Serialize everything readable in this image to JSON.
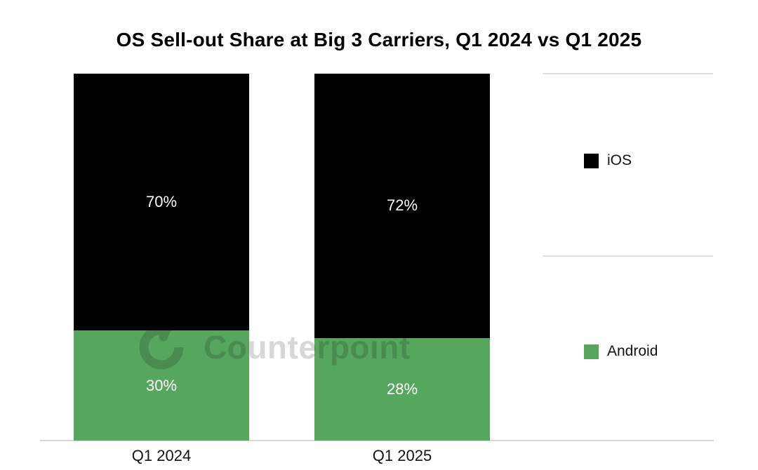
{
  "chart_data": {
    "type": "bar",
    "stacked": true,
    "title": "OS Sell-out Share at Big 3 Carriers, Q1 2024 vs Q1 2025",
    "categories": [
      "Q1 2024",
      "Q1 2025"
    ],
    "series": [
      {
        "name": "iOS",
        "color": "#000000",
        "values": [
          70,
          72
        ],
        "data_labels": [
          "70%",
          "72%"
        ]
      },
      {
        "name": "Android",
        "color": "#57A65D",
        "values": [
          30,
          28
        ],
        "data_labels": [
          "30%",
          "28%"
        ]
      }
    ],
    "unit": "%",
    "ylim": [
      0,
      100
    ],
    "grid": false,
    "legend_position": "right",
    "xlabel": "",
    "ylabel": ""
  },
  "watermark": {
    "text": "Counterpoint"
  },
  "colors": {
    "ios": "#000000",
    "android": "#57A65D",
    "axis_line": "#D6D6D6",
    "legend_separator": "#DEDEDE",
    "data_label_text": "#FFFFFF",
    "watermark_gray": "#D7D7D7"
  }
}
